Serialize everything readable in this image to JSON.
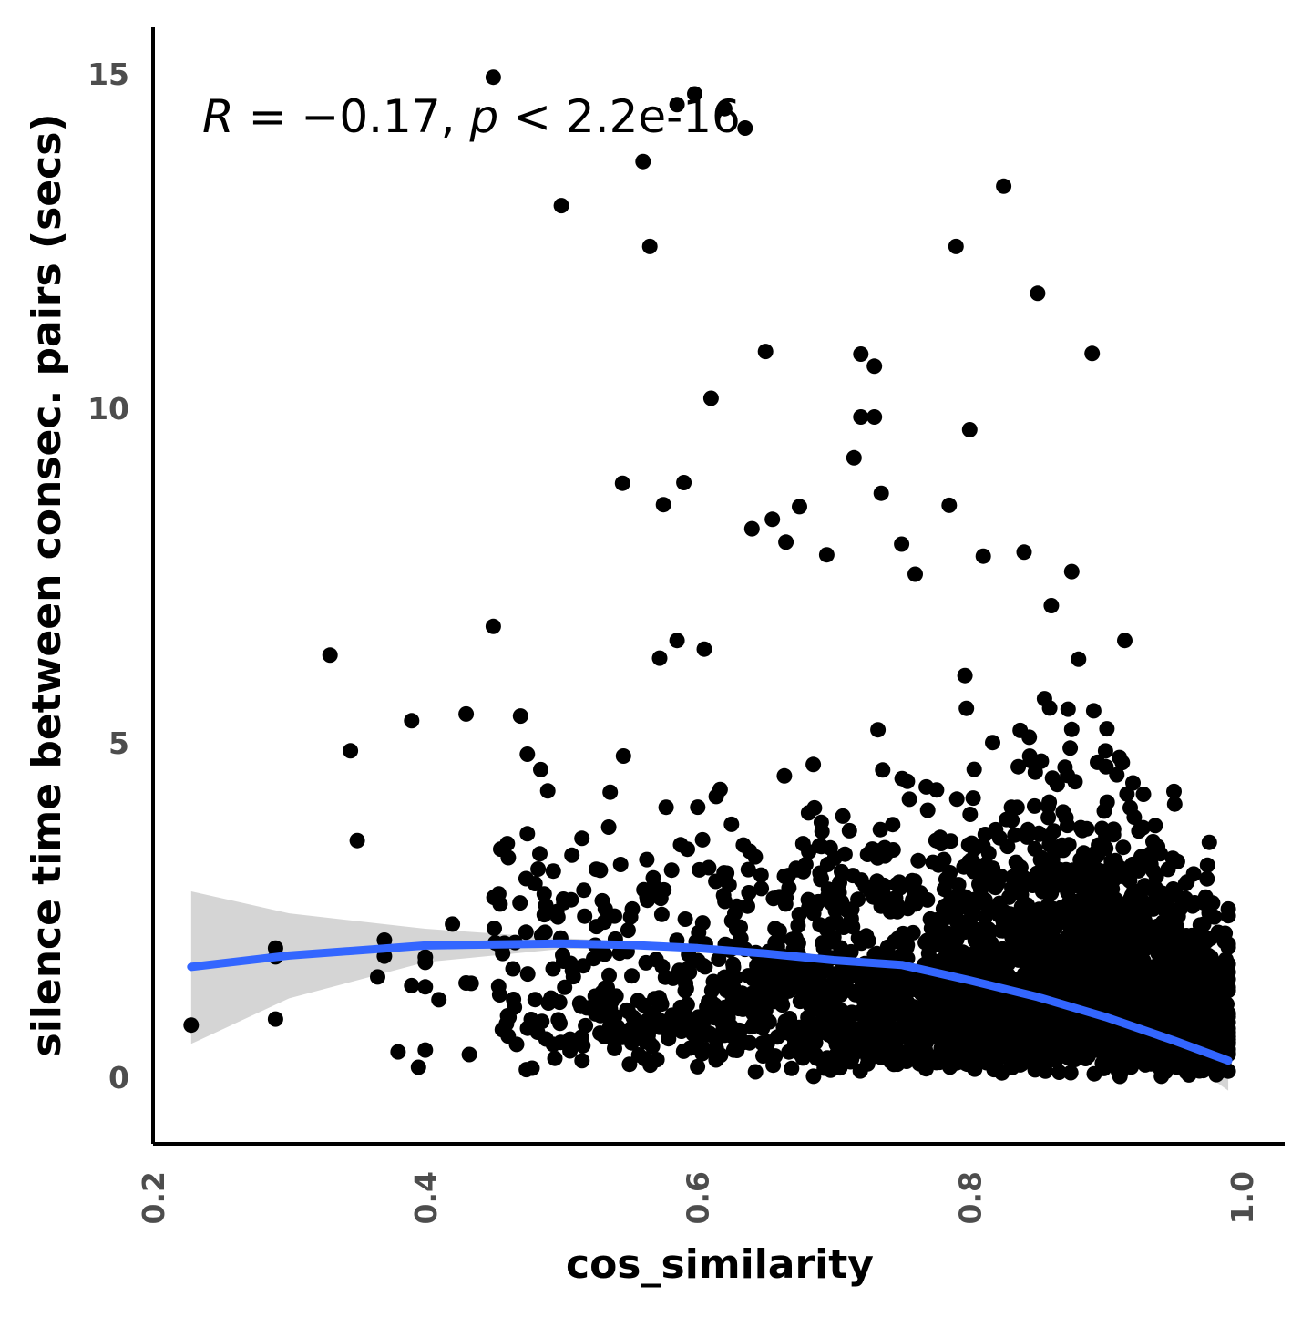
{
  "chart_data": {
    "type": "scatter",
    "title": "",
    "xlabel": "cos_similarity",
    "ylabel": "silence time between consec. pairs (secs)",
    "xlim": [
      0.2,
      1.03
    ],
    "ylim": [
      -1.0,
      16.0
    ],
    "x_ticks": [
      "0.2",
      "0.4",
      "0.6",
      "0.8",
      "1.0"
    ],
    "y_ticks": [
      "0",
      "5",
      "10",
      "15"
    ],
    "x_tick_values": [
      0.2,
      0.4,
      0.6,
      0.8,
      1.0
    ],
    "y_tick_values": [
      0,
      5,
      10,
      15
    ],
    "grid": false,
    "legend": "none",
    "annotation": {
      "r_label": "R = −0.17, ",
      "p_symbol": "p",
      "p_value": " < 2.2e-16"
    },
    "colors": {
      "points": "#000000",
      "smooth_line": "#3366ff",
      "confidence_band": "#bfbfbf",
      "tick_labels": "#4d4d4d"
    },
    "point_count_note": "dense cloud of several thousand points; most with y between 0 and 4 and x between 0.5 and 1.0",
    "highlight_points": [
      [
        0.228,
        0.78
      ],
      [
        0.29,
        0.87
      ],
      [
        0.29,
        1.8
      ],
      [
        0.29,
        1.93
      ],
      [
        0.33,
        6.31
      ],
      [
        0.345,
        4.88
      ],
      [
        0.35,
        3.54
      ],
      [
        0.365,
        1.5
      ],
      [
        0.37,
        2.05
      ],
      [
        0.37,
        1.81
      ],
      [
        0.38,
        0.38
      ],
      [
        0.39,
        1.37
      ],
      [
        0.39,
        5.33
      ],
      [
        0.395,
        0.15
      ],
      [
        0.41,
        1.16
      ],
      [
        0.42,
        2.29
      ],
      [
        0.43,
        5.43
      ],
      [
        0.43,
        1.41
      ],
      [
        0.45,
        6.74
      ],
      [
        0.455,
        2.59
      ],
      [
        0.45,
        14.95
      ],
      [
        0.47,
        5.4
      ],
      [
        0.475,
        4.83
      ],
      [
        0.475,
        3.64
      ],
      [
        0.49,
        4.28
      ],
      [
        0.5,
        13.03
      ],
      [
        0.56,
        13.69
      ],
      [
        0.565,
        12.42
      ],
      [
        0.545,
        8.88
      ],
      [
        0.575,
        8.56
      ],
      [
        0.585,
        6.53
      ],
      [
        0.59,
        8.89
      ],
      [
        0.598,
        14.7
      ],
      [
        0.605,
        6.4
      ],
      [
        0.61,
        10.15
      ],
      [
        0.65,
        10.85
      ],
      [
        0.64,
        8.2
      ],
      [
        0.655,
        8.34
      ],
      [
        0.665,
        8.0
      ],
      [
        0.675,
        8.53
      ],
      [
        0.695,
        7.81
      ],
      [
        0.72,
        10.81
      ],
      [
        0.73,
        10.63
      ],
      [
        0.72,
        9.87
      ],
      [
        0.73,
        9.87
      ],
      [
        0.715,
        9.26
      ],
      [
        0.735,
        8.73
      ],
      [
        0.75,
        7.97
      ],
      [
        0.76,
        7.52
      ],
      [
        0.785,
        8.55
      ],
      [
        0.79,
        12.42
      ],
      [
        0.8,
        9.68
      ],
      [
        0.81,
        7.79
      ],
      [
        0.825,
        13.32
      ],
      [
        0.84,
        7.85
      ],
      [
        0.85,
        11.72
      ],
      [
        0.86,
        7.05
      ],
      [
        0.875,
        7.56
      ],
      [
        0.88,
        6.25
      ],
      [
        0.89,
        10.82
      ],
      [
        0.855,
        5.66
      ],
      [
        0.875,
        5.2
      ],
      [
        0.91,
        4.78
      ],
      [
        0.92,
        4.4
      ],
      [
        0.96,
        1.05
      ],
      [
        0.97,
        0.95
      ],
      [
        0.985,
        0.4
      ],
      [
        0.99,
        0.42
      ],
      [
        0.99,
        0.5
      ],
      [
        0.585,
        14.54
      ],
      [
        0.62,
        14.48
      ],
      [
        0.635,
        14.19
      ]
    ],
    "smooth_line": {
      "x": [
        0.228,
        0.3,
        0.4,
        0.5,
        0.55,
        0.6,
        0.65,
        0.7,
        0.75,
        0.8,
        0.85,
        0.9,
        0.95,
        0.99
      ],
      "y": [
        1.65,
        1.82,
        1.97,
        2.0,
        1.98,
        1.93,
        1.85,
        1.75,
        1.68,
        1.45,
        1.2,
        0.9,
        0.55,
        0.25
      ]
    },
    "confidence_band": {
      "x": [
        0.228,
        0.3,
        0.4,
        0.5,
        0.55,
        0.6,
        0.65,
        0.7,
        0.75,
        0.8,
        0.85,
        0.9,
        0.95,
        0.99
      ],
      "upper": [
        2.78,
        2.45,
        2.22,
        2.08,
        2.03,
        1.97,
        1.89,
        1.79,
        1.73,
        1.5,
        1.26,
        0.98,
        0.72,
        0.62
      ],
      "lower": [
        0.5,
        1.18,
        1.72,
        1.92,
        1.93,
        1.89,
        1.81,
        1.71,
        1.63,
        1.4,
        1.14,
        0.82,
        0.38,
        -0.2
      ]
    }
  }
}
